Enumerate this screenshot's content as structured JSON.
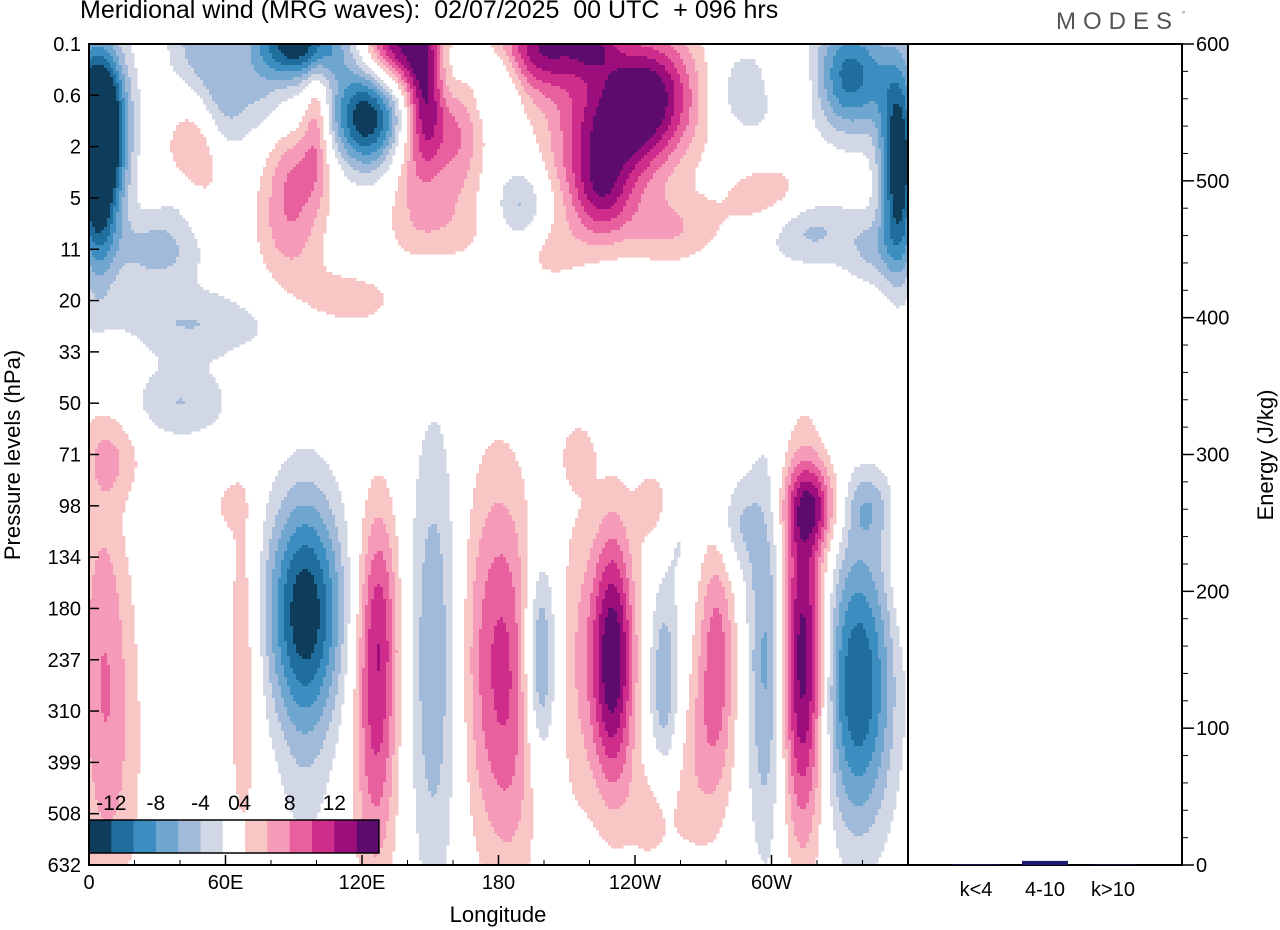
{
  "title": "Meridional wind (MRG waves):  02/07/2025  00 UTC  + 096 hrs",
  "brand": "MODES",
  "brand_mark": "°",
  "colors": {
    "neg": [
      "#0e3d5c",
      "#1f6e9d",
      "#3d8ec0",
      "#6fa6cf",
      "#a2bad9",
      "#d2d7e6"
    ],
    "pos": [
      "#f9c6c6",
      "#f59ab8",
      "#e9609f",
      "#cf2d8c",
      "#9c0e7c",
      "#5e0b6e"
    ],
    "bar": "#1a1a6e"
  },
  "chart_data": [
    {
      "type": "heatmap",
      "title": "Meridional wind (MRG waves):  02/07/2025  00 UTC  + 096 hrs",
      "xlabel": "Longitude",
      "ylabel": "Pressure levels (hPa)",
      "x_ticks": [
        "0",
        "60E",
        "120E",
        "180",
        "120W",
        "60W"
      ],
      "x_tick_degrees": [
        0,
        60,
        120,
        180,
        240,
        300
      ],
      "xlim": [
        0,
        360
      ],
      "y_ticks": [
        "0.1",
        "0.6",
        "2",
        "5",
        "11",
        "20",
        "33",
        "50",
        "71",
        "98",
        "134",
        "180",
        "237",
        "310",
        "399",
        "508",
        "632"
      ],
      "colorbar": {
        "labels": [
          "-12",
          "-8",
          "-4",
          "0",
          "4",
          "8",
          "12"
        ],
        "label_values": [
          -12,
          -8,
          -4,
          0,
          4,
          8,
          12
        ],
        "levels": [
          -14,
          -12,
          -10,
          -8,
          -6,
          -4,
          -2,
          2,
          4,
          6,
          8,
          10,
          12,
          14
        ]
      },
      "blobs": [
        {
          "x": 92,
          "p": "0.1",
          "v": -14,
          "wx": 14,
          "wy": 0.5
        },
        {
          "x": 48,
          "p": "0.1",
          "v": -5,
          "wx": 10,
          "wy": 0.8
        },
        {
          "x": 135,
          "p": "0.1",
          "v": 12,
          "wx": 10,
          "wy": 0.6
        },
        {
          "x": 148,
          "p": "0.6",
          "v": 11,
          "wx": 6,
          "wy": 1.1
        },
        {
          "x": 162,
          "p": "1.5",
          "v": 6,
          "wx": 8,
          "wy": 1.0
        },
        {
          "x": 200,
          "p": "0.1",
          "v": 12,
          "wx": 14,
          "wy": 0.7
        },
        {
          "x": 222,
          "p": "0.1",
          "v": 6,
          "wx": 8,
          "wy": 0.4
        },
        {
          "x": 245,
          "p": "0.6",
          "v": 13,
          "wx": 16,
          "wy": 0.9
        },
        {
          "x": 225,
          "p": "2",
          "v": 9,
          "wx": 16,
          "wy": 0.9
        },
        {
          "x": 4,
          "p": "1",
          "v": -11,
          "wx": 9,
          "wy": 1.0
        },
        {
          "x": 4,
          "p": "2",
          "v": -10,
          "wx": 8,
          "wy": 1.3
        },
        {
          "x": 4,
          "p": "5",
          "v": -7,
          "wx": 6,
          "wy": 1.3
        },
        {
          "x": 58,
          "p": "1",
          "v": -6,
          "wx": 8,
          "wy": 0.8
        },
        {
          "x": 75,
          "p": "0.6",
          "v": -3,
          "wx": 8,
          "wy": 0.6
        },
        {
          "x": 122,
          "p": "1",
          "v": -14,
          "wx": 11,
          "wy": 0.7
        },
        {
          "x": 100,
          "p": "1",
          "v": 5,
          "wx": 4,
          "wy": 0.9
        },
        {
          "x": 158,
          "p": "0.3",
          "v": -3,
          "wx": 6,
          "wy": 0.5
        },
        {
          "x": 180,
          "p": "0.4",
          "v": -4,
          "wx": 7,
          "wy": 0.5
        },
        {
          "x": 292,
          "p": "0.5",
          "v": -5,
          "wx": 12,
          "wy": 0.6
        },
        {
          "x": 335,
          "p": "0.3",
          "v": -11,
          "wx": 12,
          "wy": 0.8
        },
        {
          "x": 356,
          "p": "2",
          "v": -10,
          "wx": 6,
          "wy": 1.3
        },
        {
          "x": 356,
          "p": "5",
          "v": -6,
          "wx": 5,
          "wy": 1.2
        },
        {
          "x": 306,
          "p": "0.4",
          "v": 4,
          "wx": 10,
          "wy": 0.5
        },
        {
          "x": 50,
          "p": "2",
          "v": 6,
          "wx": 10,
          "wy": 0.8
        },
        {
          "x": 92,
          "p": "3",
          "v": 5,
          "wx": 10,
          "wy": 0.6
        },
        {
          "x": 140,
          "p": "3",
          "v": 3,
          "wx": 7,
          "wy": 0.8
        },
        {
          "x": 152,
          "p": "8",
          "v": 3,
          "wx": 14,
          "wy": 0.5
        },
        {
          "x": 88,
          "p": "8",
          "v": 5,
          "wx": 10,
          "wy": 0.7
        },
        {
          "x": 200,
          "p": "11",
          "v": 3,
          "wx": 14,
          "wy": 0.5
        },
        {
          "x": 255,
          "p": "8",
          "v": 4,
          "wx": 16,
          "wy": 0.5
        },
        {
          "x": 300,
          "p": "5",
          "v": 4,
          "wx": 14,
          "wy": 0.5
        },
        {
          "x": 225,
          "p": "5",
          "v": 6,
          "wx": 9,
          "wy": 0.6
        },
        {
          "x": 190,
          "p": "6",
          "v": -5,
          "wx": 8,
          "wy": 0.6
        },
        {
          "x": 315,
          "p": "8",
          "v": -5,
          "wx": 14,
          "wy": 0.5
        },
        {
          "x": 30,
          "p": "11",
          "v": -5,
          "wx": 14,
          "wy": 0.5
        },
        {
          "x": 40,
          "p": "5",
          "v": -2,
          "wx": 8,
          "wy": 0.4
        },
        {
          "x": 110,
          "p": "20",
          "v": 3,
          "wx": 22,
          "wy": 0.5
        },
        {
          "x": 45,
          "p": "25",
          "v": -4,
          "wx": 32,
          "wy": 0.5
        },
        {
          "x": 345,
          "p": "11",
          "v": -4,
          "wx": 10,
          "wy": 0.5
        },
        {
          "x": 12,
          "p": "33",
          "v": 2,
          "wx": 8,
          "wy": 0.3
        },
        {
          "x": 40,
          "p": "50",
          "v": -4,
          "wx": 16,
          "wy": 0.5
        },
        {
          "x": 10,
          "p": "71",
          "v": 3,
          "wx": 10,
          "wy": 0.6
        },
        {
          "x": 60,
          "p": "98",
          "v": 2,
          "wx": 6,
          "wy": 0.4
        },
        {
          "x": 35,
          "p": "110",
          "v": -2,
          "wx": 10,
          "wy": 0.4
        },
        {
          "x": 318,
          "p": "98",
          "v": 8,
          "wx": 9,
          "wy": 0.6
        },
        {
          "x": 342,
          "p": "98",
          "v": -4,
          "wx": 8,
          "wy": 0.5
        },
        {
          "x": 285,
          "p": "110",
          "v": -4,
          "wx": 7,
          "wy": 0.7
        },
        {
          "x": 260,
          "p": "120",
          "v": -2,
          "wx": 5,
          "wy": 0.6
        },
        {
          "x": 6,
          "p": "237",
          "v": 5,
          "wx": 8,
          "wy": 2.8
        },
        {
          "x": 14,
          "p": "399",
          "v": 2,
          "wx": 10,
          "wy": 2.4
        },
        {
          "x": 48,
          "p": "450",
          "v": -2,
          "wx": 6,
          "wy": 1.5
        },
        {
          "x": 68,
          "p": "237",
          "v": 4,
          "wx": 5,
          "wy": 2.6
        },
        {
          "x": 95,
          "p": "180",
          "v": -13,
          "wx": 12,
          "wy": 1.6
        },
        {
          "x": 95,
          "p": "399",
          "v": -2,
          "wx": 9,
          "wy": 2.2
        },
        {
          "x": 126,
          "p": "310",
          "v": 8,
          "wx": 7,
          "wy": 2.4
        },
        {
          "x": 128,
          "p": "180",
          "v": 4,
          "wx": 6,
          "wy": 1.5
        },
        {
          "x": 152,
          "p": "237",
          "v": -6,
          "wx": 8,
          "wy": 3.2
        },
        {
          "x": 178,
          "p": "237",
          "v": 7,
          "wx": 11,
          "wy": 2.6
        },
        {
          "x": 188,
          "p": "310",
          "v": 3,
          "wx": 8,
          "wy": 2.6
        },
        {
          "x": 198,
          "p": "237",
          "v": -8,
          "wx": 5,
          "wy": 1.4
        },
        {
          "x": 214,
          "p": "237",
          "v": 3,
          "wx": 6,
          "wy": 2.5
        },
        {
          "x": 230,
          "p": "237",
          "v": 14,
          "wx": 7,
          "wy": 1.8
        },
        {
          "x": 253,
          "p": "270",
          "v": -6,
          "wx": 5,
          "wy": 1.4
        },
        {
          "x": 276,
          "p": "237",
          "v": 7,
          "wx": 6,
          "wy": 1.8
        },
        {
          "x": 266,
          "p": "399",
          "v": 3,
          "wx": 8,
          "wy": 1.4
        },
        {
          "x": 298,
          "p": "237",
          "v": -7,
          "wx": 6,
          "wy": 2.6
        },
        {
          "x": 314,
          "p": "237",
          "v": 14,
          "wx": 7,
          "wy": 2.4
        },
        {
          "x": 338,
          "p": "270",
          "v": -12,
          "wx": 11,
          "wy": 2.0
        },
        {
          "x": 358,
          "p": "134",
          "v": 3,
          "wx": 4,
          "wy": 1.0
        },
        {
          "x": 248,
          "p": "98",
          "v": 3,
          "wx": 6,
          "wy": 0.6
        },
        {
          "x": 215,
          "p": "71",
          "v": 3,
          "wx": 5,
          "wy": 0.4
        },
        {
          "x": 248,
          "p": "508",
          "v": 3,
          "wx": 8,
          "wy": 0.8
        }
      ]
    },
    {
      "type": "bar",
      "ylabel": "Energy (J/kg)",
      "ylim": [
        0,
        600
      ],
      "y_ticks": [
        "0",
        "100",
        "200",
        "300",
        "400",
        "500",
        "600"
      ],
      "categories": [
        "k<4",
        "4-10",
        "k>10"
      ],
      "values": [
        0.5,
        3,
        0.3
      ]
    }
  ]
}
